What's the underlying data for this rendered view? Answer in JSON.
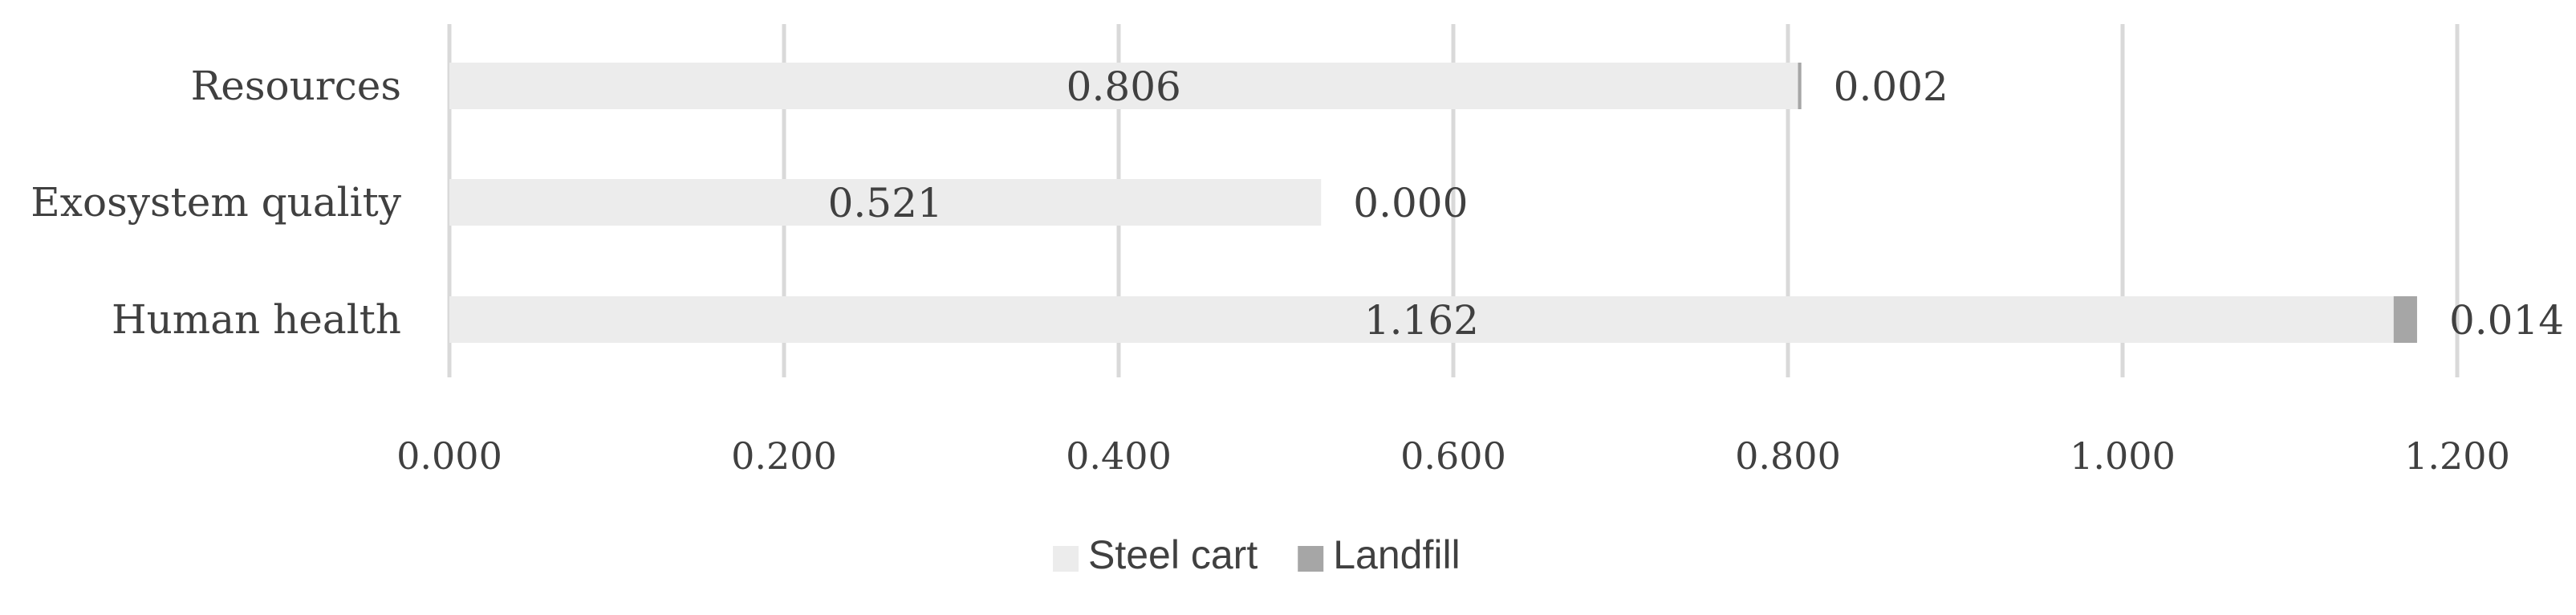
{
  "chart_data": {
    "type": "bar",
    "orientation": "horizontal",
    "stacked": true,
    "title": "",
    "xlabel": "",
    "ylabel": "",
    "categories": [
      "Human health",
      "Exosystem quality",
      "Resources"
    ],
    "series": [
      {
        "name": "Steel cart",
        "values": [
          1.162,
          0.521,
          0.806
        ],
        "labels": [
          "1.162",
          "0.521",
          "0.806"
        ],
        "color": "#ececec"
      },
      {
        "name": "Landfill",
        "values": [
          0.014,
          0.0,
          0.002
        ],
        "labels": [
          "0.014",
          "0.000",
          "0.002"
        ],
        "color": "#a6a6a6"
      }
    ],
    "xlim": [
      0,
      1.2
    ],
    "xticks": [
      0,
      0.2,
      0.4,
      0.6,
      0.8,
      1.0,
      1.2
    ],
    "xtick_labels": [
      "0.000",
      "0.200",
      "0.400",
      "0.600",
      "0.800",
      "1.000",
      "1.200"
    ],
    "grid": true,
    "legend_position": "bottom",
    "colors": {
      "gridline": "#d9d9d9",
      "text": "#404040"
    }
  }
}
